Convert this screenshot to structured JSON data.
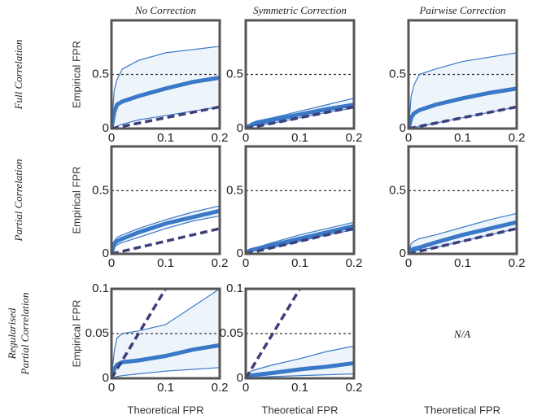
{
  "column_titles": [
    "No Correction",
    "Symmetric Correction",
    "Pairwise Correction"
  ],
  "row_titles": [
    [
      "Full Correlation"
    ],
    [
      "Partial Correlation"
    ],
    [
      "Regularised",
      "Partial Correlation"
    ]
  ],
  "na_text": "N/A",
  "na_xlabel": "Theoretical FPR",
  "chart_data": [
    {
      "type": "line",
      "ylabel": "Empirical FPR",
      "x": [
        0,
        0.005,
        0.01,
        0.02,
        0.05,
        0.1,
        0.15,
        0.2
      ],
      "series": [
        {
          "color": "#3a78c8",
          "values": [
            0,
            0.35,
            0.45,
            0.55,
            0.63,
            0.7,
            0.73,
            0.76
          ]
        },
        {
          "color": "#3a78c8",
          "values": [
            0,
            0.15,
            0.22,
            0.25,
            0.3,
            0.37,
            0.43,
            0.47
          ]
        },
        {
          "color": "#3a78c8",
          "values": [
            0,
            0.01,
            0.02,
            0.04,
            0.08,
            0.12,
            0.16,
            0.2
          ]
        }
      ],
      "fill_color": "#eef5fa",
      "diagonal_color": "#3d3f7a",
      "hline": 0.5,
      "xlim": [
        0,
        0.2
      ],
      "ylim": [
        0,
        1
      ],
      "xticks": [
        0,
        0.1,
        0.2
      ],
      "yticks": [
        0,
        0.5
      ]
    },
    {
      "type": "line",
      "x": [
        0,
        0.005,
        0.01,
        0.02,
        0.05,
        0.1,
        0.15,
        0.2
      ],
      "series": [
        {
          "color": "#3a78c8",
          "values": [
            0,
            0.03,
            0.05,
            0.07,
            0.1,
            0.16,
            0.22,
            0.28
          ]
        },
        {
          "color": "#3a78c8",
          "values": [
            0,
            0.02,
            0.03,
            0.05,
            0.08,
            0.13,
            0.18,
            0.22
          ]
        },
        {
          "color": "#3a78c8",
          "values": [
            0,
            0.01,
            0.02,
            0.03,
            0.05,
            0.1,
            0.15,
            0.19
          ]
        }
      ],
      "fill_color": "#eef5fa",
      "diagonal_color": "#3d3f7a",
      "hline": 0.5,
      "xlim": [
        0,
        0.2
      ],
      "ylim": [
        0,
        1
      ],
      "xticks": [
        0,
        0.1,
        0.2
      ],
      "yticks": [
        0,
        0.5
      ]
    },
    {
      "type": "line",
      "x": [
        0,
        0.005,
        0.01,
        0.02,
        0.05,
        0.1,
        0.15,
        0.2
      ],
      "series": [
        {
          "color": "#3a78c8",
          "values": [
            0,
            0.3,
            0.4,
            0.5,
            0.55,
            0.62,
            0.66,
            0.7
          ]
        },
        {
          "color": "#3a78c8",
          "values": [
            0,
            0.1,
            0.14,
            0.17,
            0.22,
            0.28,
            0.33,
            0.37
          ]
        },
        {
          "color": "#3a78c8",
          "values": [
            0,
            0.01,
            0.01,
            0.02,
            0.05,
            0.1,
            0.15,
            0.2
          ]
        }
      ],
      "fill_color": "#eef5fa",
      "diagonal_color": "#3d3f7a",
      "hline": 0.5,
      "xlim": [
        0,
        0.2
      ],
      "ylim": [
        0,
        1
      ],
      "xticks": [
        0,
        0.1,
        0.2
      ],
      "yticks": [
        0,
        0.5
      ]
    },
    {
      "type": "line",
      "ylabel": "Empirical FPR",
      "x": [
        0,
        0.005,
        0.01,
        0.02,
        0.05,
        0.1,
        0.15,
        0.2
      ],
      "series": [
        {
          "color": "#3a78c8",
          "values": [
            0,
            0.1,
            0.13,
            0.15,
            0.2,
            0.27,
            0.33,
            0.38
          ]
        },
        {
          "color": "#3a78c8",
          "values": [
            0,
            0.08,
            0.1,
            0.12,
            0.17,
            0.24,
            0.29,
            0.34
          ]
        },
        {
          "color": "#3a78c8",
          "values": [
            0,
            0.05,
            0.07,
            0.09,
            0.13,
            0.2,
            0.26,
            0.3
          ]
        }
      ],
      "fill_color": "#eef5fa",
      "diagonal_color": "#3d3f7a",
      "hline": 0.5,
      "xlim": [
        0,
        0.2
      ],
      "ylim": [
        0,
        0.85
      ],
      "xticks": [
        0,
        0.1,
        0.2
      ],
      "yticks": [
        0,
        0.5
      ]
    },
    {
      "type": "line",
      "x": [
        0,
        0.005,
        0.01,
        0.02,
        0.05,
        0.1,
        0.15,
        0.2
      ],
      "series": [
        {
          "color": "#3a78c8",
          "values": [
            0,
            0.03,
            0.04,
            0.05,
            0.09,
            0.15,
            0.2,
            0.25
          ]
        },
        {
          "color": "#3a78c8",
          "values": [
            0,
            0.02,
            0.03,
            0.04,
            0.07,
            0.12,
            0.17,
            0.22
          ]
        },
        {
          "color": "#3a78c8",
          "values": [
            0,
            0.01,
            0.02,
            0.03,
            0.05,
            0.1,
            0.15,
            0.19
          ]
        }
      ],
      "fill_color": "#eef5fa",
      "diagonal_color": "#3d3f7a",
      "hline": 0.5,
      "xlim": [
        0,
        0.2
      ],
      "ylim": [
        0,
        0.85
      ],
      "xticks": [
        0,
        0.1,
        0.2
      ],
      "yticks": [
        0,
        0.5
      ]
    },
    {
      "type": "line",
      "x": [
        0,
        0.005,
        0.01,
        0.02,
        0.05,
        0.1,
        0.15,
        0.2
      ],
      "series": [
        {
          "color": "#3a78c8",
          "values": [
            0,
            0.08,
            0.1,
            0.12,
            0.15,
            0.21,
            0.27,
            0.32
          ]
        },
        {
          "color": "#3a78c8",
          "values": [
            0,
            0.03,
            0.04,
            0.05,
            0.09,
            0.15,
            0.2,
            0.25
          ]
        },
        {
          "color": "#3a78c8",
          "values": [
            0,
            0.01,
            0.02,
            0.03,
            0.05,
            0.1,
            0.15,
            0.2
          ]
        }
      ],
      "fill_color": "#eef5fa",
      "diagonal_color": "#3d3f7a",
      "hline": 0.5,
      "xlim": [
        0,
        0.2
      ],
      "ylim": [
        0,
        0.85
      ],
      "xticks": [
        0,
        0.1,
        0.2
      ],
      "yticks": [
        0,
        0.5
      ]
    },
    {
      "type": "line",
      "ylabel": "Empirical FPR",
      "xlabel": "Theoretical FPR",
      "x": [
        0,
        0.005,
        0.01,
        0.02,
        0.05,
        0.1,
        0.15,
        0.2
      ],
      "series": [
        {
          "color": "#3a78c8",
          "values": [
            0,
            0.03,
            0.045,
            0.05,
            0.053,
            0.06,
            0.08,
            0.1
          ]
        },
        {
          "color": "#3a78c8",
          "values": [
            0,
            0.01,
            0.015,
            0.018,
            0.02,
            0.025,
            0.032,
            0.037
          ]
        },
        {
          "color": "#3a78c8",
          "values": [
            0,
            0.001,
            0.002,
            0.003,
            0.005,
            0.008,
            0.01,
            0.012
          ]
        }
      ],
      "fill_color": "#eef5fa",
      "diagonal_color": "#3d3f7a",
      "hline": 0.05,
      "xlim": [
        0,
        0.2
      ],
      "ylim": [
        0,
        0.1
      ],
      "xticks": [
        0,
        0.1,
        0.2
      ],
      "yticks": [
        0,
        0.05,
        0.1
      ]
    },
    {
      "type": "line",
      "xlabel": "Theoretical FPR",
      "x": [
        0,
        0.005,
        0.01,
        0.02,
        0.05,
        0.1,
        0.15,
        0.2
      ],
      "series": [
        {
          "color": "#3a78c8",
          "values": [
            0,
            0.005,
            0.008,
            0.01,
            0.015,
            0.022,
            0.03,
            0.036
          ]
        },
        {
          "color": "#3a78c8",
          "values": [
            0,
            0.002,
            0.003,
            0.004,
            0.006,
            0.01,
            0.013,
            0.017
          ]
        },
        {
          "color": "#3a78c8",
          "values": [
            0,
            0,
            0,
            0.001,
            0.002,
            0.003,
            0.004,
            0.005
          ]
        }
      ],
      "fill_color": "#eef5fa",
      "diagonal_color": "#3d3f7a",
      "hline": 0.05,
      "xlim": [
        0,
        0.2
      ],
      "ylim": [
        0,
        0.1
      ],
      "xticks": [
        0,
        0.1,
        0.2
      ],
      "yticks": [
        0,
        0.05,
        0.1
      ]
    }
  ]
}
